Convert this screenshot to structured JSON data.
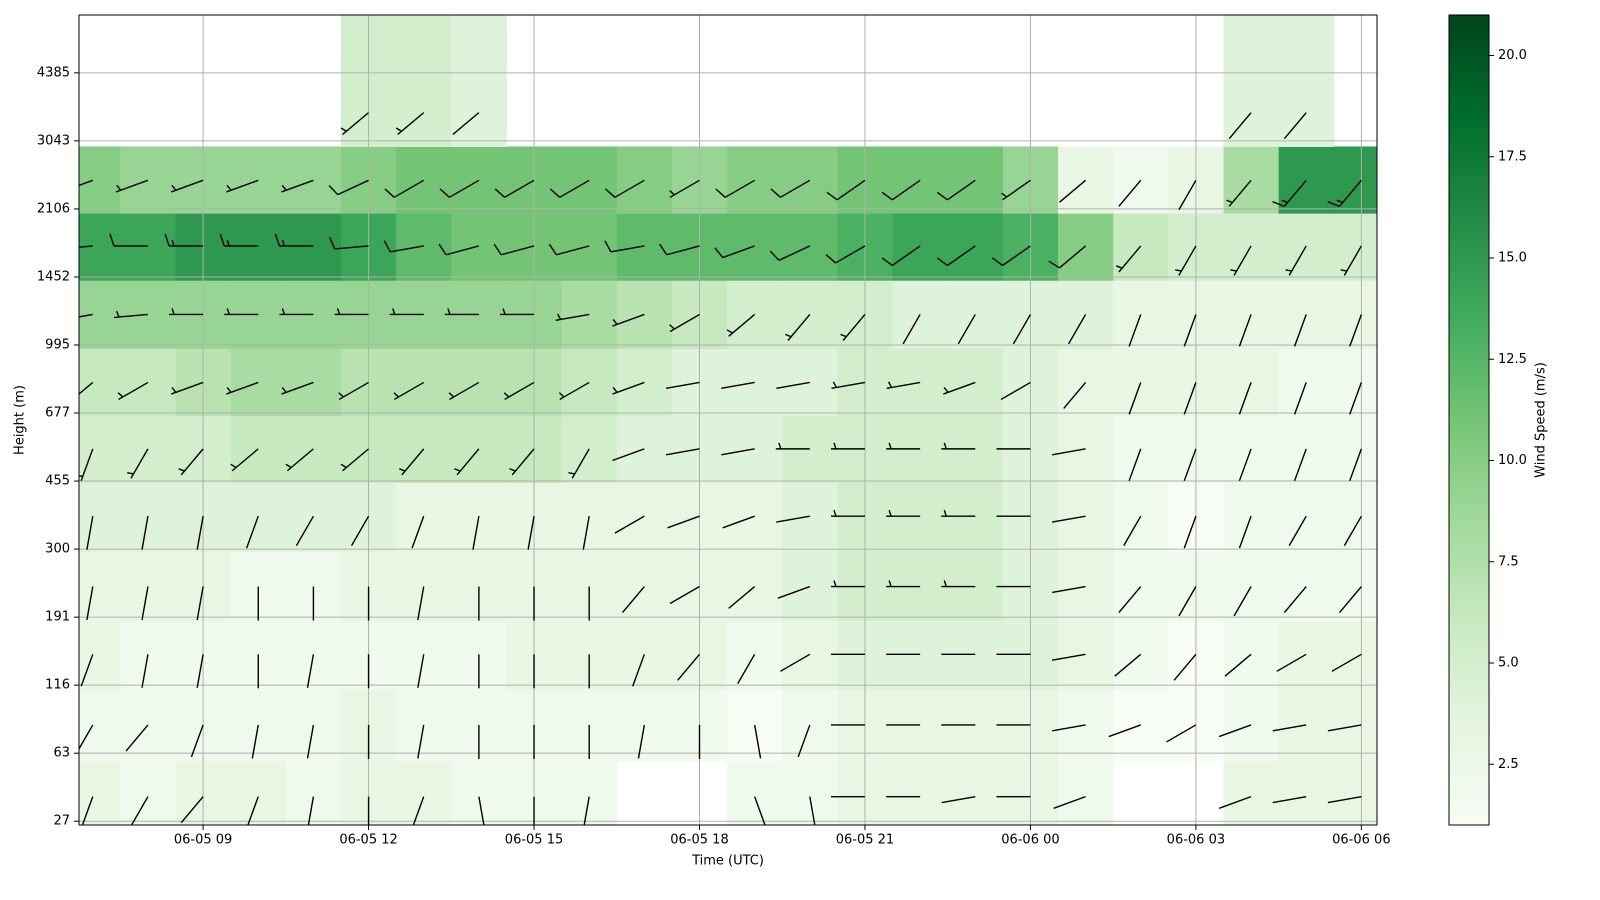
{
  "chart_data": {
    "type": "barb-heatmap",
    "xlabel": "Time (UTC)",
    "ylabel": "Height (m)",
    "colorbar_label": "Wind Speed (m/s)",
    "colormap": "Greens",
    "y_scale": "level",
    "grid": true,
    "barb_color": "#000000",
    "xlim": [
      "06-05 06:45",
      "06-06 06:17"
    ],
    "xticks": [
      "06-05 09",
      "06-05 12",
      "06-05 15",
      "06-05 18",
      "06-05 21",
      "06-06 00",
      "06-06 03",
      "06-06 06"
    ],
    "ylim": [
      25,
      5526
    ],
    "yticks": [
      27,
      63,
      116,
      191,
      300,
      455,
      677,
      995,
      1452,
      2106,
      3043,
      4385
    ],
    "clim": [
      1,
      21
    ],
    "cticks": [
      2.5,
      {
        "value": 5,
        "label": "5.0"
      },
      7.5,
      {
        "value": 10,
        "label": "10.0"
      },
      12.5,
      {
        "value": 15,
        "label": "15.0"
      },
      17.5,
      {
        "value": 20,
        "label": "20.0"
      }
    ],
    "x": [
      "06-05 07",
      "06-05 08",
      "06-05 09",
      "06-05 10",
      "06-05 11",
      "06-05 12",
      "06-05 13",
      "06-05 14",
      "06-05 15",
      "06-05 16",
      "06-05 17",
      "06-05 18",
      "06-05 19",
      "06-05 20",
      "06-05 21",
      "06-05 22",
      "06-05 23",
      "06-06 00",
      "06-06 01",
      "06-06 02",
      "06-06 03",
      "06-06 04",
      "06-06 05",
      "06-06 06"
    ],
    "heights": [
      40,
      85,
      150,
      240,
      375,
      560,
      820,
      1200,
      1750,
      2500,
      3600
    ],
    "speed": [
      [
        3,
        2,
        3,
        3,
        2,
        3,
        3,
        2,
        2,
        2,
        null,
        null,
        2,
        2,
        3,
        3,
        3,
        3,
        2,
        null,
        null,
        3,
        3,
        3
      ],
      [
        2,
        2,
        2,
        2,
        2,
        3,
        2,
        2,
        2,
        2,
        2,
        2,
        1,
        2,
        3,
        3,
        3,
        3,
        2,
        1,
        1,
        2,
        3,
        3
      ],
      [
        3,
        2,
        2,
        2,
        2,
        2,
        2,
        2,
        3,
        3,
        3,
        3,
        2,
        3,
        4,
        4,
        4,
        4,
        3,
        2,
        1,
        2,
        3,
        3
      ],
      [
        3,
        3,
        3,
        2,
        2,
        3,
        3,
        3,
        3,
        3,
        3,
        3,
        3,
        4,
        5,
        5,
        5,
        4,
        3,
        2,
        2,
        2,
        2,
        2
      ],
      [
        4,
        4,
        4,
        4,
        4,
        4,
        3,
        3,
        3,
        3,
        3,
        3,
        3,
        4,
        5,
        5,
        5,
        4,
        3,
        2,
        1,
        2,
        2,
        2
      ],
      [
        5,
        5,
        5,
        6,
        6,
        6,
        6,
        6,
        6,
        5,
        4,
        4,
        4,
        5,
        5,
        5,
        5,
        4,
        3,
        2,
        2,
        2,
        2,
        2
      ],
      [
        6,
        6,
        7,
        8,
        8,
        7,
        7,
        7,
        7,
        6,
        5,
        4,
        4,
        4,
        5,
        5,
        5,
        4,
        3,
        3,
        3,
        3,
        2,
        2
      ],
      [
        9,
        9,
        9,
        9,
        9,
        9,
        9,
        9,
        9,
        8,
        7,
        6,
        5,
        5,
        5,
        4,
        4,
        4,
        4,
        3,
        3,
        3,
        3,
        3
      ],
      [
        14,
        14,
        15,
        15,
        15,
        14,
        12,
        11,
        11,
        11,
        12,
        12,
        12,
        12,
        13,
        14,
        14,
        13,
        10,
        6,
        5,
        5,
        5,
        5
      ],
      [
        10,
        9,
        9,
        9,
        9,
        10,
        11,
        11,
        11,
        11,
        10,
        9,
        10,
        10,
        11,
        11,
        11,
        9,
        3,
        2,
        3,
        8,
        15,
        15
      ],
      [
        null,
        null,
        null,
        null,
        null,
        5,
        5,
        4,
        null,
        null,
        null,
        null,
        null,
        null,
        null,
        null,
        null,
        null,
        null,
        null,
        null,
        4,
        4,
        null
      ]
    ],
    "direction": [
      [
        200,
        210,
        220,
        200,
        190,
        180,
        200,
        170,
        180,
        190,
        null,
        null,
        160,
        170,
        270,
        270,
        260,
        270,
        250,
        null,
        null,
        250,
        260,
        260
      ],
      [
        210,
        220,
        200,
        190,
        190,
        180,
        190,
        180,
        180,
        180,
        190,
        180,
        170,
        200,
        270,
        270,
        270,
        270,
        260,
        250,
        240,
        250,
        260,
        260
      ],
      [
        200,
        190,
        190,
        180,
        190,
        180,
        190,
        180,
        180,
        180,
        200,
        220,
        210,
        240,
        270,
        270,
        270,
        270,
        260,
        230,
        220,
        230,
        240,
        240
      ],
      [
        190,
        190,
        190,
        180,
        180,
        180,
        190,
        180,
        180,
        180,
        220,
        240,
        230,
        250,
        270,
        270,
        270,
        270,
        260,
        220,
        210,
        210,
        220,
        220
      ],
      [
        190,
        190,
        190,
        200,
        210,
        210,
        200,
        190,
        190,
        190,
        240,
        250,
        250,
        260,
        270,
        270,
        270,
        270,
        260,
        210,
        200,
        200,
        210,
        210
      ],
      [
        200,
        210,
        220,
        230,
        230,
        230,
        220,
        220,
        220,
        210,
        250,
        260,
        260,
        270,
        270,
        270,
        270,
        270,
        260,
        200,
        200,
        200,
        200,
        200
      ],
      [
        230,
        240,
        250,
        250,
        250,
        240,
        240,
        240,
        240,
        240,
        250,
        260,
        260,
        260,
        260,
        260,
        250,
        240,
        220,
        200,
        200,
        200,
        200,
        200
      ],
      [
        260,
        265,
        270,
        270,
        270,
        270,
        270,
        270,
        270,
        260,
        250,
        240,
        230,
        220,
        220,
        210,
        210,
        210,
        210,
        200,
        200,
        200,
        200,
        200
      ],
      [
        265,
        270,
        270,
        270,
        270,
        265,
        260,
        255,
        255,
        255,
        260,
        255,
        250,
        245,
        240,
        235,
        235,
        235,
        230,
        220,
        210,
        210,
        210,
        210
      ],
      [
        250,
        250,
        250,
        250,
        250,
        245,
        240,
        240,
        240,
        240,
        240,
        240,
        240,
        240,
        235,
        235,
        235,
        235,
        230,
        220,
        210,
        220,
        220,
        220
      ],
      [
        null,
        null,
        null,
        null,
        null,
        230,
        230,
        230,
        null,
        null,
        null,
        null,
        null,
        null,
        null,
        null,
        null,
        null,
        null,
        null,
        null,
        220,
        220,
        null
      ]
    ]
  }
}
